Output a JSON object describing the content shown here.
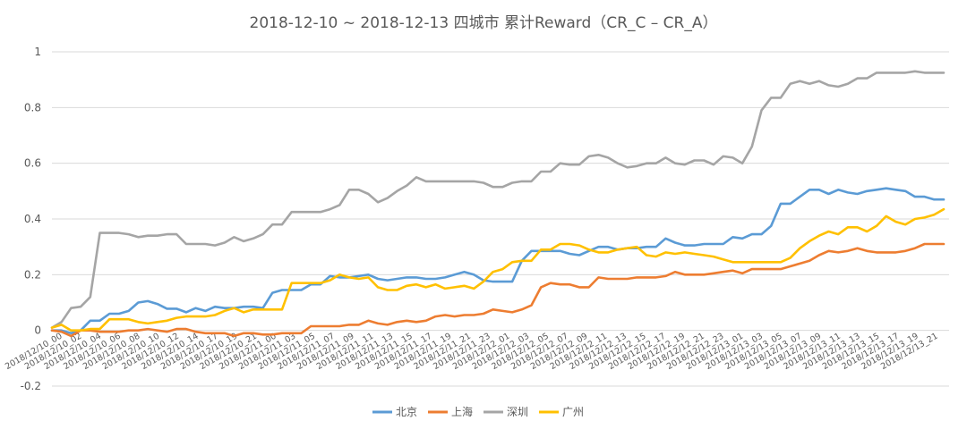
{
  "chart_data": {
    "type": "line",
    "title": "2018-12-10 ~ 2018-12-13 四城市  累计Reward（CR_C – CR_A）",
    "xlabel": "",
    "ylabel": "",
    "ylim": [
      -0.2,
      1.0
    ],
    "y_ticks": [
      "-0.2",
      "0",
      "0.2",
      "0.4",
      "0.6",
      "0.8",
      "1"
    ],
    "grid": true,
    "legend_position": "bottom",
    "x_tick_labels": [
      "2018/12/10_00",
      "2018/12/10_02",
      "2018/12/10_04",
      "2018/12/10_06",
      "2018/12/10_08",
      "2018/12/10_10",
      "2018/12/10_12",
      "2018/12/10_14",
      "2018/12/10_17",
      "2018/12/10_19",
      "2018/12/10_21",
      "2018/12/11_00",
      "2018/12/11_03",
      "2018/12/11_05",
      "2018/12/11_07",
      "2018/12/11_09",
      "2018/12/11_11",
      "2018/12/11_13",
      "2018/12/11_15",
      "2018/12/11_17",
      "2018/12/11_19",
      "2018/12/11_21",
      "2018/12/11_23",
      "2018/12/12_01",
      "2018/12/12_03",
      "2018/12/12_05",
      "2018/12/12_07",
      "2018/12/12_09",
      "2018/12/12_11",
      "2018/12/12_13",
      "2018/12/12_15",
      "2018/12/12_17",
      "2018/12/12_19",
      "2018/12/12_21",
      "2018/12/12_23",
      "2018/12/13_01",
      "2018/12/13_03",
      "2018/12/13_05",
      "2018/12/13_07",
      "2018/12/13_09",
      "2018/12/13_11",
      "2018/12/13_13",
      "2018/12/13_15",
      "2018/12/13_17",
      "2018/12/13_19",
      "2018/12/13_21"
    ],
    "series": [
      {
        "name": "北京",
        "color": "#5b9bd5",
        "values": [
          0,
          0,
          -0.01,
          0,
          0.035,
          0.035,
          0.06,
          0.06,
          0.07,
          0.1,
          0.105,
          0.095,
          0.078,
          0.078,
          0.065,
          0.08,
          0.07,
          0.085,
          0.08,
          0.08,
          0.085,
          0.085,
          0.08,
          0.135,
          0.145,
          0.145,
          0.145,
          0.165,
          0.165,
          0.195,
          0.19,
          0.19,
          0.195,
          0.2,
          0.185,
          0.18,
          0.185,
          0.19,
          0.19,
          0.185,
          0.185,
          0.19,
          0.2,
          0.21,
          0.2,
          0.18,
          0.175,
          0.175,
          0.175,
          0.25,
          0.285,
          0.285,
          0.285,
          0.285,
          0.275,
          0.27,
          0.285,
          0.3,
          0.3,
          0.29,
          0.295,
          0.295,
          0.3,
          0.3,
          0.33,
          0.315,
          0.305,
          0.305,
          0.31,
          0.31,
          0.31,
          0.335,
          0.33,
          0.345,
          0.345,
          0.375,
          0.455,
          0.455,
          0.48,
          0.505,
          0.505,
          0.49,
          0.505,
          0.495,
          0.49,
          0.5,
          0.505,
          0.51,
          0.505,
          0.5,
          0.48,
          0.48,
          0.47,
          0.47
        ]
      },
      {
        "name": "上海",
        "color": "#ed7d31",
        "values": [
          0,
          -0.005,
          -0.02,
          0,
          0,
          -0.005,
          -0.005,
          -0.005,
          0,
          0,
          0.005,
          0,
          -0.005,
          0.005,
          0.005,
          -0.005,
          -0.01,
          -0.01,
          -0.01,
          -0.02,
          -0.01,
          -0.01,
          -0.015,
          -0.015,
          -0.01,
          -0.01,
          -0.01,
          0.015,
          0.015,
          0.015,
          0.015,
          0.02,
          0.02,
          0.035,
          0.025,
          0.02,
          0.03,
          0.035,
          0.03,
          0.035,
          0.05,
          0.055,
          0.05,
          0.055,
          0.055,
          0.06,
          0.075,
          0.07,
          0.065,
          0.075,
          0.09,
          0.155,
          0.17,
          0.165,
          0.165,
          0.155,
          0.155,
          0.19,
          0.185,
          0.185,
          0.185,
          0.19,
          0.19,
          0.19,
          0.195,
          0.21,
          0.2,
          0.2,
          0.2,
          0.205,
          0.21,
          0.215,
          0.205,
          0.22,
          0.22,
          0.22,
          0.22,
          0.23,
          0.24,
          0.25,
          0.27,
          0.285,
          0.28,
          0.285,
          0.295,
          0.285,
          0.28,
          0.28,
          0.28,
          0.285,
          0.295,
          0.31,
          0.31,
          0.31
        ]
      },
      {
        "name": "深圳",
        "color": "#a5a5a5",
        "values": [
          0.01,
          0.03,
          0.08,
          0.085,
          0.12,
          0.35,
          0.35,
          0.35,
          0.345,
          0.335,
          0.34,
          0.34,
          0.345,
          0.345,
          0.31,
          0.31,
          0.31,
          0.305,
          0.315,
          0.335,
          0.32,
          0.33,
          0.345,
          0.38,
          0.38,
          0.425,
          0.425,
          0.425,
          0.425,
          0.435,
          0.45,
          0.505,
          0.505,
          0.49,
          0.46,
          0.475,
          0.5,
          0.52,
          0.55,
          0.535,
          0.535,
          0.535,
          0.535,
          0.535,
          0.535,
          0.53,
          0.515,
          0.515,
          0.53,
          0.535,
          0.535,
          0.57,
          0.57,
          0.6,
          0.595,
          0.595,
          0.625,
          0.63,
          0.62,
          0.6,
          0.585,
          0.59,
          0.6,
          0.6,
          0.62,
          0.6,
          0.595,
          0.61,
          0.61,
          0.595,
          0.625,
          0.62,
          0.6,
          0.66,
          0.79,
          0.835,
          0.835,
          0.885,
          0.895,
          0.885,
          0.895,
          0.88,
          0.875,
          0.885,
          0.905,
          0.905,
          0.925,
          0.925,
          0.925,
          0.925,
          0.93,
          0.925,
          0.925,
          0.925
        ]
      },
      {
        "name": "广州",
        "color": "#ffc000",
        "values": [
          0.01,
          0.02,
          0,
          0,
          0.005,
          0.005,
          0.04,
          0.04,
          0.04,
          0.03,
          0.025,
          0.03,
          0.035,
          0.045,
          0.05,
          0.05,
          0.05,
          0.055,
          0.07,
          0.08,
          0.065,
          0.075,
          0.075,
          0.075,
          0.075,
          0.17,
          0.17,
          0.17,
          0.17,
          0.18,
          0.2,
          0.19,
          0.185,
          0.19,
          0.155,
          0.145,
          0.145,
          0.16,
          0.165,
          0.155,
          0.165,
          0.15,
          0.155,
          0.16,
          0.15,
          0.175,
          0.21,
          0.22,
          0.245,
          0.25,
          0.25,
          0.29,
          0.29,
          0.31,
          0.31,
          0.305,
          0.29,
          0.28,
          0.28,
          0.29,
          0.295,
          0.3,
          0.27,
          0.265,
          0.28,
          0.275,
          0.28,
          0.275,
          0.27,
          0.265,
          0.255,
          0.245,
          0.245,
          0.245,
          0.245,
          0.245,
          0.245,
          0.26,
          0.295,
          0.32,
          0.34,
          0.355,
          0.345,
          0.37,
          0.37,
          0.355,
          0.375,
          0.41,
          0.39,
          0.38,
          0.4,
          0.405,
          0.415,
          0.435
        ]
      }
    ]
  }
}
